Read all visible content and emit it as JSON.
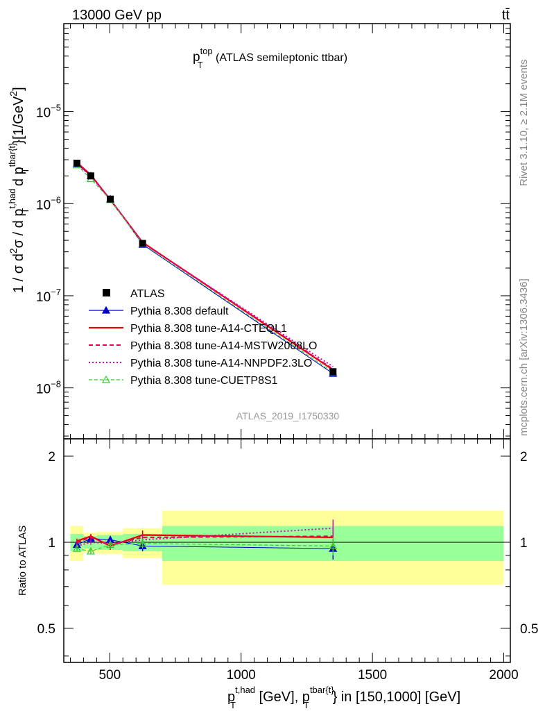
{
  "header": {
    "left": "13000 GeV pp",
    "right": "tt̄"
  },
  "side_labels": {
    "rivet": "Rivet 3.1.10, ≥ 2.1M events",
    "mcplots": "mcplots.cern.ch [arXiv:1306.3436]"
  },
  "main": {
    "title_main": "p",
    "title_sup": "top",
    "title_sub": "T",
    "title_rest": " (ATLAS semileptonic ttbar)",
    "ylabel_a": "1 / σ d",
    "ylabel_a_sup": "2",
    "ylabel_b": "σ / d p",
    "ylabel_b_sup": "t,had",
    "ylabel_b_sub": "T",
    "ylabel_c": " d p",
    "ylabel_c_sup": "tbar{t}",
    "ylabel_c_sub": "T",
    "ylabel_d": "}[1/GeV",
    "ylabel_d_sup": "2",
    "ylabel_e": "]",
    "watermark": "ATLAS_2019_I1750330",
    "ytick_labels": [
      {
        "base": "10",
        "exp": "−5",
        "value": 1e-05
      },
      {
        "base": "10",
        "exp": "−6",
        "value": 1e-06
      },
      {
        "base": "10",
        "exp": "−7",
        "value": 1e-07
      },
      {
        "base": "10",
        "exp": "−8",
        "value": 1e-08
      }
    ]
  },
  "ratio": {
    "ylabel": "Ratio to ATLAS",
    "ytick_labels": [
      {
        "label": "2",
        "value": 2
      },
      {
        "label": "1",
        "value": 1
      },
      {
        "label": "0.5",
        "value": 0.5
      }
    ]
  },
  "xaxis": {
    "tick_labels": [
      {
        "label": "500",
        "value": 500
      },
      {
        "label": "1000",
        "value": 1000
      },
      {
        "label": "1500",
        "value": 1500
      },
      {
        "label": "2000",
        "value": 2000
      }
    ],
    "label_p1": "p",
    "label_p1_sup": "t,had",
    "label_p1_sub": "T",
    "label_mid": " [GeV], p",
    "label_p2_sup": "tbar{t}",
    "label_p2_sub": "T",
    "label_end": "} in [150,1000] [GeV]"
  },
  "legend": [
    {
      "label": "ATLAS",
      "color": "#000000",
      "style": "data"
    },
    {
      "label": "Pythia 8.308 default",
      "color": "#0000cc",
      "style": "solid-triangle"
    },
    {
      "label": "Pythia 8.308 tune-A14-CTEQL1",
      "color": "#ee0000",
      "style": "solid-thick"
    },
    {
      "label": "Pythia 8.308 tune-A14-MSTW2008LO",
      "color": "#e8004a",
      "style": "dashed"
    },
    {
      "label": "Pythia 8.308 tune-A14-NNPDF2.3LO",
      "color": "#dd00bb",
      "style": "dotted"
    },
    {
      "label": "Pythia 8.308 tune-CUETP8S1",
      "color": "#33cc33",
      "style": "dashed-open-triangle"
    }
  ],
  "chart_data": {
    "type": "line",
    "x_range": [
      325,
      2025
    ],
    "main_y_range": [
      2.8e-09,
      9e-05
    ],
    "main_y_scale": "log",
    "ratio_y_range": [
      0.38,
      2.3
    ],
    "ratio_y_scale": "log",
    "grid": false,
    "legend_placement": "lower-left",
    "x": [
      375,
      428,
      502,
      625,
      1350
    ],
    "bin_edges": [
      350,
      400,
      450,
      550,
      700,
      2000
    ],
    "data": {
      "values": [
        2.75e-06,
        2e-06,
        1.12e-06,
        3.7e-07,
        1.5e-08
      ],
      "ratio_band_stat": [
        0.07,
        0.05,
        0.06,
        0.07,
        0.14
      ],
      "ratio_band_total": [
        0.14,
        0.08,
        0.09,
        0.12,
        0.29
      ]
    },
    "series": [
      {
        "name": "Pythia 8.308 default",
        "values": [
          2.7e-06,
          2e-06,
          1.12e-06,
          3.6e-07,
          1.43e-08
        ],
        "ratio": [
          0.98,
          1.03,
          1.02,
          0.97,
          0.95
        ],
        "ratio_err": [
          0.03,
          0.03,
          0.03,
          0.04,
          0.08
        ]
      },
      {
        "name": "Pythia 8.308 tune-A14-CTEQL1",
        "values": [
          2.8e-06,
          2.05e-06,
          1.1e-06,
          3.8e-07,
          1.57e-08
        ],
        "ratio": [
          1.01,
          1.05,
          0.97,
          1.06,
          1.04
        ],
        "ratio_err": [
          0.02,
          0.02,
          0.03,
          0.04,
          0.07
        ]
      },
      {
        "name": "Pythia 8.308 tune-A14-MSTW2008LO",
        "values": [
          2.78e-06,
          2.03e-06,
          1.11e-06,
          3.8e-07,
          1.6e-08
        ],
        "ratio": [
          1.0,
          1.04,
          0.98,
          1.04,
          1.05
        ],
        "ratio_err": [
          0.02,
          0.02,
          0.03,
          0.04,
          0.07
        ]
      },
      {
        "name": "Pythia 8.308 tune-A14-NNPDF2.3LO",
        "values": [
          2.7e-06,
          1.98e-06,
          1.12e-06,
          3.72e-07,
          1.7e-08
        ],
        "ratio": [
          0.97,
          1.0,
          0.99,
          1.02,
          1.12
        ],
        "ratio_err": [
          0.02,
          0.02,
          0.03,
          0.04,
          0.08
        ]
      },
      {
        "name": "Pythia 8.308 tune-CUETP8S1",
        "values": [
          2.62e-06,
          1.86e-06,
          1.1e-06,
          3.65e-07,
          1.48e-08
        ],
        "ratio": [
          0.95,
          0.93,
          0.98,
          0.99,
          0.97
        ],
        "ratio_err": [
          0.02,
          0.02,
          0.03,
          0.04,
          0.07
        ]
      }
    ]
  }
}
